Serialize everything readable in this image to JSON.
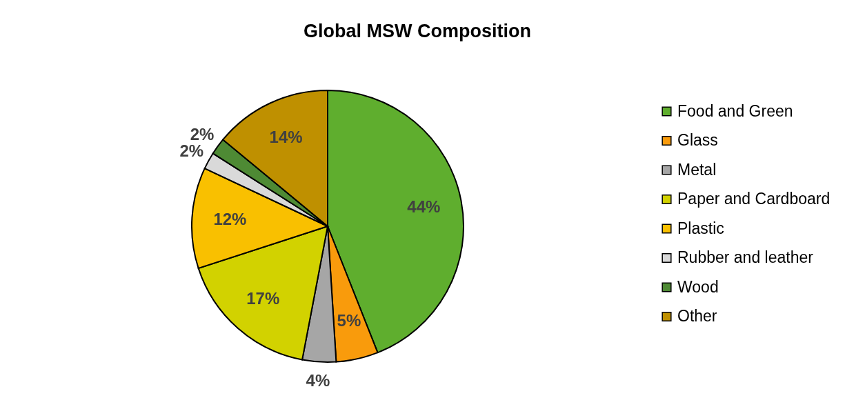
{
  "chart_data": {
    "type": "pie",
    "title": "Global MSW Composition",
    "categories": [
      "Food and Green",
      "Glass",
      "Metal",
      "Paper and Cardboard",
      "Plastic",
      "Rubber and leather",
      "Wood",
      "Other"
    ],
    "values": [
      44,
      5,
      4,
      17,
      12,
      2,
      2,
      14
    ],
    "colors": [
      "#5fae2e",
      "#f99b0c",
      "#a6a6a6",
      "#d2d200",
      "#f9c000",
      "#d9d9d9",
      "#4e8a34",
      "#bf9000"
    ],
    "value_labels": [
      "44%",
      "5%",
      "4%",
      "17%",
      "12%",
      "2%",
      "2%",
      "14%"
    ],
    "legend": "right"
  }
}
